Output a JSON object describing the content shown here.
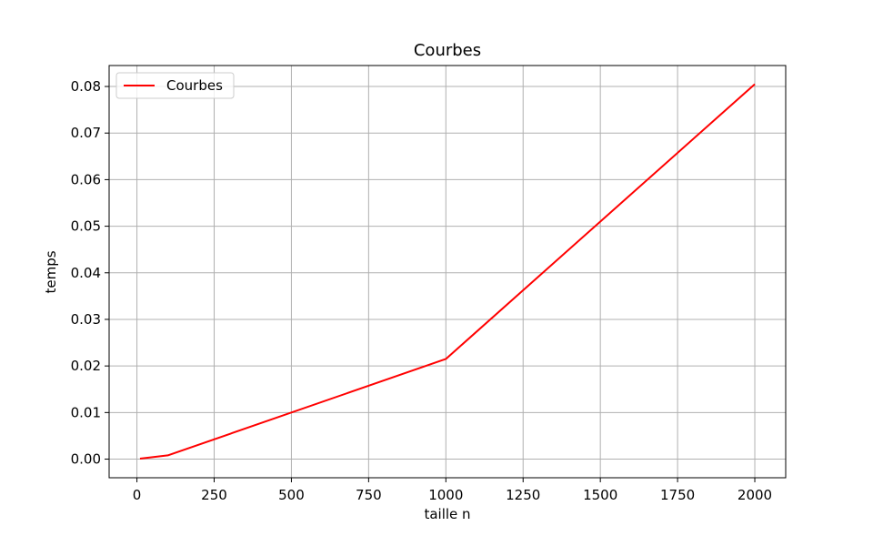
{
  "chart_data": {
    "type": "line",
    "title": "Courbes",
    "xlabel": "taille n",
    "ylabel": "temps",
    "xlim": [
      -90,
      2100
    ],
    "ylim": [
      -0.004,
      0.0845
    ],
    "xticks": [
      0,
      250,
      500,
      750,
      1000,
      1250,
      1500,
      1750,
      2000
    ],
    "xtick_labels": [
      "0",
      "250",
      "500",
      "750",
      "1000",
      "1250",
      "1500",
      "1750",
      "2000"
    ],
    "yticks": [
      0.0,
      0.01,
      0.02,
      0.03,
      0.04,
      0.05,
      0.06,
      0.07,
      0.08
    ],
    "ytick_labels": [
      "0.00",
      "0.01",
      "0.02",
      "0.03",
      "0.04",
      "0.05",
      "0.06",
      "0.07",
      "0.08"
    ],
    "grid": true,
    "legend": {
      "position": "upper-left",
      "entries": [
        "Courbes"
      ]
    },
    "series": [
      {
        "name": "Courbes",
        "color": "#ff0000",
        "x": [
          10,
          100,
          1000,
          2000
        ],
        "y": [
          0.0001,
          0.0008,
          0.0215,
          0.0805
        ]
      }
    ]
  }
}
